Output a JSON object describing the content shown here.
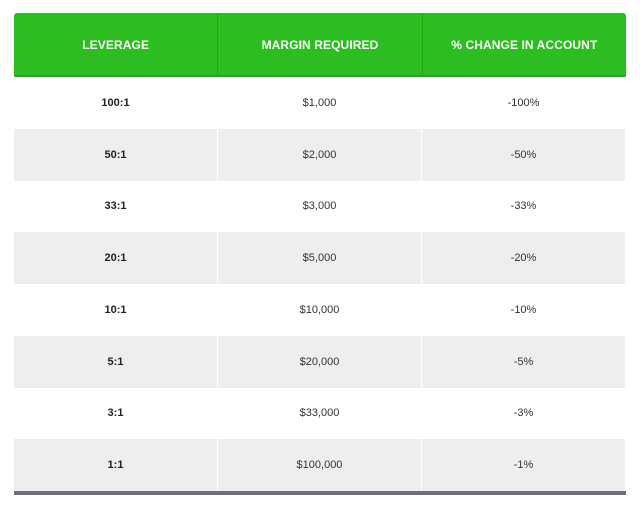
{
  "table": {
    "headers": [
      "LEVERAGE",
      "MARGIN REQUIRED",
      "% CHANGE IN ACCOUNT"
    ],
    "rows": [
      [
        "100:1",
        "$1,000",
        "-100%"
      ],
      [
        "50:1",
        "$2,000",
        "-50%"
      ],
      [
        "33:1",
        "$3,000",
        "-33%"
      ],
      [
        "20:1",
        "$5,000",
        "-20%"
      ],
      [
        "10:1",
        "$10,000",
        "-10%"
      ],
      [
        "5:1",
        "$20,000",
        "-5%"
      ],
      [
        "3:1",
        "$33,000",
        "-3%"
      ],
      [
        "1:1",
        "$100,000",
        "-1%"
      ]
    ]
  },
  "colors": {
    "header_bg": "#2cbd20",
    "header_text": "#ffffff",
    "row_alt_bg": "#eeeeee",
    "footer_bar": "#6b6f78"
  }
}
